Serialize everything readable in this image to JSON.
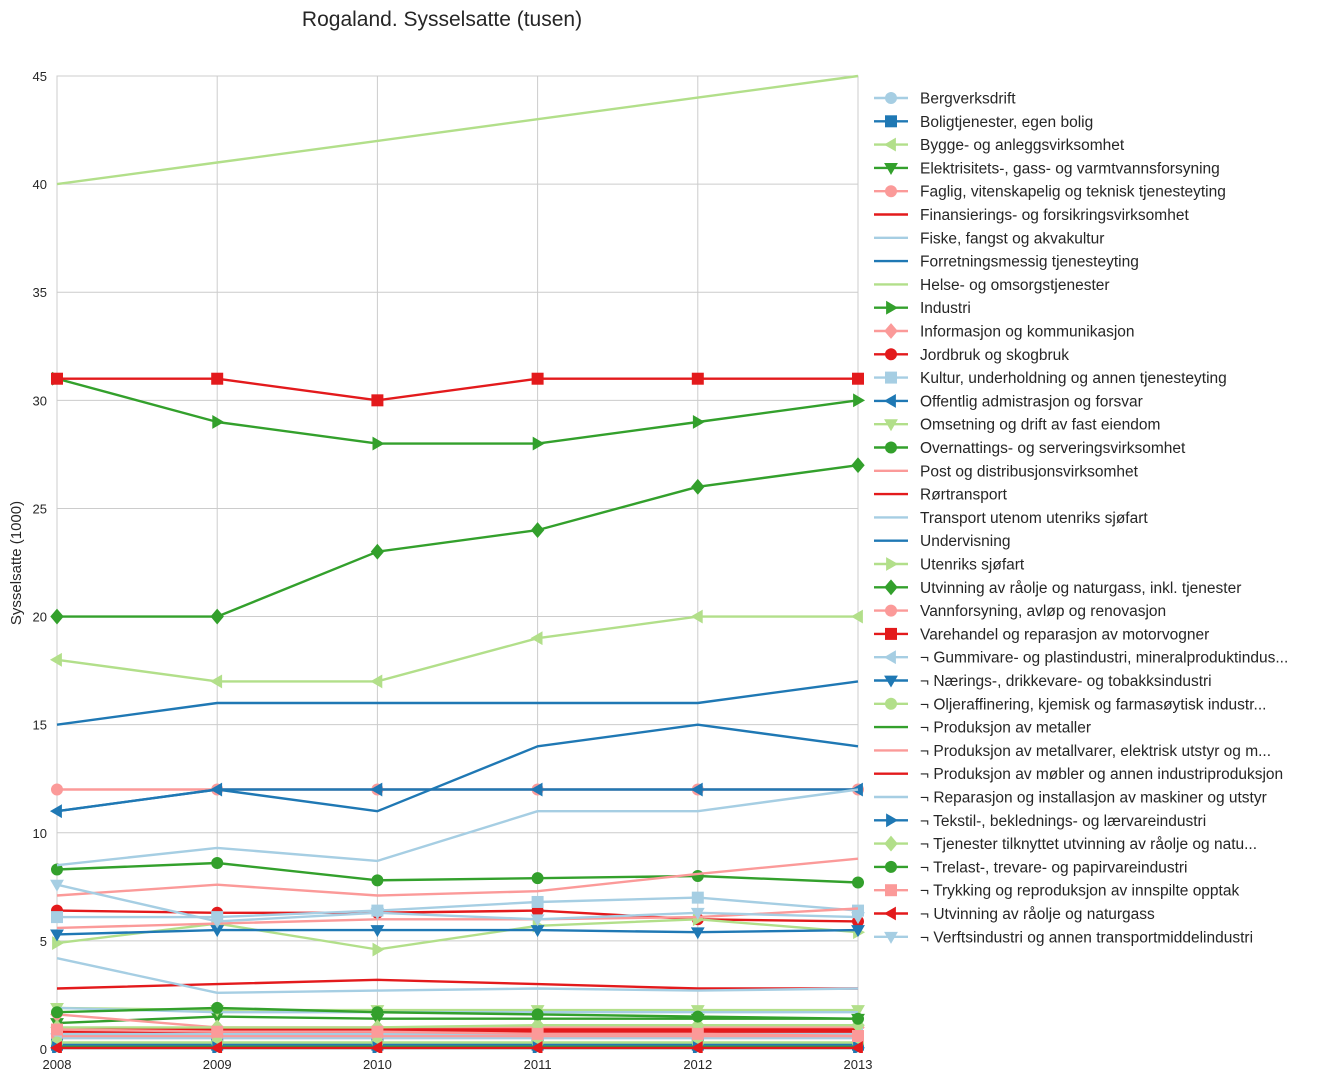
{
  "chart_data": {
    "type": "line",
    "title": "Rogaland. Sysselsatte (tusen)",
    "xlabel": "",
    "ylabel": "Sysselsatte (1000)",
    "x": [
      2008,
      2009,
      2010,
      2011,
      2012,
      2013
    ],
    "x_ticks": [
      "2008",
      "2009",
      "2010",
      "2011",
      "2012",
      "2013"
    ],
    "ylim": [
      0,
      45
    ],
    "y_ticks": [
      "0",
      "5",
      "10",
      "15",
      "20",
      "25",
      "30",
      "35",
      "40",
      "45"
    ],
    "grid": true,
    "legend_position": "right",
    "series": [
      {
        "name": "Bergverksdrift",
        "color": "#a6cee3",
        "marker": "circle",
        "values": [
          0.5,
          0.5,
          0.5,
          0.5,
          0.5,
          0.5
        ]
      },
      {
        "name": "Boligtjenester, egen bolig",
        "color": "#1f78b4",
        "marker": "square",
        "values": [
          0.2,
          0.2,
          0.2,
          0.2,
          0.2,
          0.2
        ]
      },
      {
        "name": "Bygge- og anleggsvirksomhet",
        "color": "#b2df8a",
        "marker": "triangle-left",
        "values": [
          18,
          17,
          17,
          19,
          20,
          20
        ]
      },
      {
        "name": "Elektrisitets-, gass- og varmtvannsforsyning",
        "color": "#33a02c",
        "marker": "triangle-down",
        "values": [
          1.2,
          1.5,
          1.4,
          1.4,
          1.4,
          1.4
        ]
      },
      {
        "name": "Faglig, vitenskapelig og teknisk tjenesteyting",
        "color": "#fb9a99",
        "marker": "circle",
        "values": [
          12,
          12,
          12,
          12,
          12,
          12
        ]
      },
      {
        "name": "Finansierings- og forsikringsvirksomhet",
        "color": "#e31a1c",
        "marker": "none",
        "values": [
          2.8,
          3.0,
          3.2,
          3.0,
          2.8,
          2.8
        ]
      },
      {
        "name": "Fiske, fangst og akvakultur",
        "color": "#a6cee3",
        "marker": "none",
        "values": [
          4.2,
          2.6,
          2.7,
          2.8,
          2.7,
          2.8
        ]
      },
      {
        "name": "Forretningsmessig tjenesteyting",
        "color": "#1f78b4",
        "marker": "none",
        "values": [
          11,
          12,
          11,
          14,
          15,
          14
        ]
      },
      {
        "name": "Helse- og omsorgstjenester",
        "color": "#b2df8a",
        "marker": "none",
        "values": [
          40,
          41,
          42,
          43,
          44,
          45
        ]
      },
      {
        "name": "Industri",
        "color": "#33a02c",
        "marker": "triangle-right",
        "values": [
          31,
          29,
          28,
          28,
          29,
          30
        ]
      },
      {
        "name": "Informasjon og kommunikasjon",
        "color": "#fb9a99",
        "marker": "diamond",
        "values": [
          1.6,
          1.0,
          1.0,
          1.0,
          1.0,
          1.0
        ]
      },
      {
        "name": "Jordbruk og skogbruk",
        "color": "#e31a1c",
        "marker": "circle",
        "values": [
          6.4,
          6.3,
          6.3,
          6.4,
          6.0,
          5.9
        ]
      },
      {
        "name": "Kultur, underholdning og annen tjenesteyting",
        "color": "#a6cee3",
        "marker": "square",
        "values": [
          6.1,
          6.1,
          6.4,
          6.8,
          7.0,
          6.4
        ]
      },
      {
        "name": "Offentlig admistrasjon og forsvar",
        "color": "#1f78b4",
        "marker": "triangle-left",
        "values": [
          11,
          12,
          12,
          12,
          12,
          12
        ]
      },
      {
        "name": "Omsetning og drift av fast eiendom",
        "color": "#b2df8a",
        "marker": "triangle-down",
        "values": [
          1.9,
          1.8,
          1.8,
          1.8,
          1.8,
          1.8
        ]
      },
      {
        "name": "Overnattings- og serveringsvirksomhet",
        "color": "#33a02c",
        "marker": "circle",
        "values": [
          8.3,
          8.6,
          7.8,
          7.9,
          8.0,
          7.7
        ]
      },
      {
        "name": "Post og distribusjonsvirksomhet",
        "color": "#fb9a99",
        "marker": "none",
        "values": [
          7.1,
          7.6,
          7.1,
          7.3,
          8.1,
          8.8
        ]
      },
      {
        "name": "Rørtransport",
        "color": "#e31a1c",
        "marker": "none",
        "values": [
          0.9,
          0.9,
          0.9,
          0.9,
          0.9,
          0.9
        ]
      },
      {
        "name": "Transport utenom utenriks sjøfart",
        "color": "#a6cee3",
        "marker": "none",
        "values": [
          8.5,
          9.3,
          8.7,
          11,
          11,
          12
        ]
      },
      {
        "name": "Undervisning",
        "color": "#1f78b4",
        "marker": "none",
        "values": [
          15,
          16,
          16,
          16,
          16,
          17
        ]
      },
      {
        "name": "Utenriks sjøfart",
        "color": "#b2df8a",
        "marker": "triangle-right",
        "values": [
          4.9,
          5.8,
          4.6,
          5.7,
          6.0,
          5.4
        ]
      },
      {
        "name": "Utvinning av råolje og naturgass, inkl. tjenester",
        "color": "#33a02c",
        "marker": "diamond",
        "values": [
          20,
          20,
          23,
          24,
          26,
          27
        ]
      },
      {
        "name": "Vannforsyning, avløp og renovasjon",
        "color": "#fb9a99",
        "marker": "circle",
        "values": [
          0.6,
          0.6,
          0.6,
          0.6,
          0.6,
          0.6
        ]
      },
      {
        "name": "Varehandel og reparasjon av motorvogner",
        "color": "#e31a1c",
        "marker": "square",
        "values": [
          31,
          31,
          30,
          31,
          31,
          31
        ]
      },
      {
        "name": "¬ Gummivare- og plastindustri, mineralproduktindus...",
        "color": "#a6cee3",
        "marker": "triangle-left",
        "values": [
          0.7,
          0.7,
          0.7,
          0.7,
          0.7,
          0.7
        ]
      },
      {
        "name": "¬ Nærings-, drikkevare- og tobakksindustri",
        "color": "#1f78b4",
        "marker": "triangle-down",
        "values": [
          5.3,
          5.5,
          5.5,
          5.5,
          5.4,
          5.5
        ]
      },
      {
        "name": "¬ Oljeraffinering, kjemisk og farmasøytisk industr...",
        "color": "#b2df8a",
        "marker": "circle",
        "values": [
          0.3,
          0.3,
          0.3,
          0.3,
          0.3,
          0.3
        ]
      },
      {
        "name": "¬ Produksjon av metaller",
        "color": "#33a02c",
        "marker": "none",
        "values": [
          0.1,
          0.1,
          0.1,
          0.1,
          0.1,
          0.1
        ]
      },
      {
        "name": "¬ Produksjon av metallvarer, elektrisk utstyr og m...",
        "color": "#fb9a99",
        "marker": "none",
        "values": [
          5.6,
          5.8,
          6.0,
          6.0,
          6.1,
          6.5
        ]
      },
      {
        "name": "¬ Produksjon av møbler og annen industriproduksjon",
        "color": "#e31a1c",
        "marker": "none",
        "values": [
          0.8,
          0.8,
          0.8,
          0.8,
          0.8,
          0.8
        ]
      },
      {
        "name": "¬ Reparasjon og installasjon av maskiner og utstyr",
        "color": "#a6cee3",
        "marker": "none",
        "values": [
          1.9,
          1.7,
          1.7,
          1.7,
          1.7,
          1.7
        ]
      },
      {
        "name": "¬ Tekstil-, beklednings- og lærvareindustri",
        "color": "#1f78b4",
        "marker": "triangle-right",
        "values": [
          0.05,
          0.05,
          0.05,
          0.05,
          0.05,
          0.05
        ]
      },
      {
        "name": "¬ Tjenester tilknyttet utvinning av råolje og natu...",
        "color": "#b2df8a",
        "marker": "diamond",
        "values": [
          1.0,
          1.0,
          1.0,
          1.1,
          1.1,
          1.1
        ]
      },
      {
        "name": "¬ Trelast-, trevare- og papirvareindustri",
        "color": "#33a02c",
        "marker": "circle",
        "values": [
          1.7,
          1.9,
          1.7,
          1.6,
          1.5,
          1.4
        ]
      },
      {
        "name": "¬ Trykking og reproduksjon av innspilte opptak",
        "color": "#fb9a99",
        "marker": "square",
        "values": [
          0.9,
          0.8,
          0.8,
          0.7,
          0.7,
          0.6
        ]
      },
      {
        "name": "¬ Utvinning av råolje og naturgass",
        "color": "#e31a1c",
        "marker": "triangle-left",
        "values": [
          0.05,
          0.05,
          0.05,
          0.05,
          0.05,
          0.05
        ]
      },
      {
        "name": "¬ Verftsindustri og annen transportmiddelindustri",
        "color": "#a6cee3",
        "marker": "triangle-down",
        "values": [
          7.6,
          5.9,
          6.3,
          6.0,
          6.3,
          6.1
        ]
      }
    ]
  }
}
